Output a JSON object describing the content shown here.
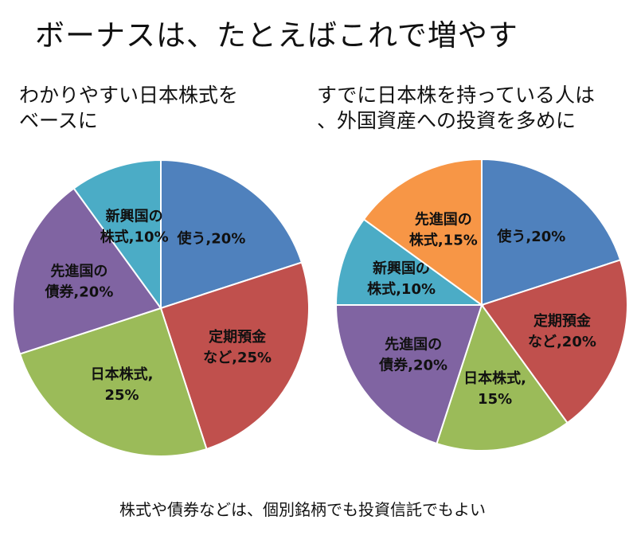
{
  "title": "ボーナスは、たとえばこれで増やす",
  "footer_note": "株式や債券などは、個別銘柄でも投資信託でもよい",
  "chart_data": [
    {
      "type": "pie",
      "subtitle": "わかりやすい日本株式を\nベースに",
      "slices": [
        {
          "label": "使う",
          "value": 20,
          "color": "#4f81bd",
          "label_lines": [
            "使う,20%"
          ]
        },
        {
          "label": "定期預金など",
          "value": 25,
          "color": "#c0504d",
          "label_lines": [
            "定期預金",
            "など,25%"
          ]
        },
        {
          "label": "日本株式",
          "value": 25,
          "color": "#9bbb59",
          "label_lines": [
            "日本株式,",
            "25%"
          ]
        },
        {
          "label": "先進国の債券",
          "value": 20,
          "color": "#8064a2",
          "label_lines": [
            "先進国の",
            "債券,20%"
          ]
        },
        {
          "label": "新興国の株式",
          "value": 10,
          "color": "#4bacc6",
          "label_lines": [
            "新興国の",
            "株式,10%"
          ]
        }
      ]
    },
    {
      "type": "pie",
      "subtitle": "すでに日本株を持っている人は\n、外国資産への投資を多めに",
      "slices": [
        {
          "label": "使う",
          "value": 20,
          "color": "#4f81bd",
          "label_lines": [
            "使う,20%"
          ]
        },
        {
          "label": "定期預金など",
          "value": 20,
          "color": "#c0504d",
          "label_lines": [
            "定期預金",
            "など,20%"
          ]
        },
        {
          "label": "日本株式",
          "value": 15,
          "color": "#9bbb59",
          "label_lines": [
            "日本株式,",
            "15%"
          ]
        },
        {
          "label": "先進国の債券",
          "value": 20,
          "color": "#8064a2",
          "label_lines": [
            "先進国の",
            "債券,20%"
          ]
        },
        {
          "label": "新興国の株式",
          "value": 10,
          "color": "#4bacc6",
          "label_lines": [
            "新興国の",
            "株式,10%"
          ]
        },
        {
          "label": "先進国の株式",
          "value": 15,
          "color": "#f79646",
          "label_lines": [
            "先進国の",
            "株式,15%"
          ]
        }
      ]
    }
  ]
}
